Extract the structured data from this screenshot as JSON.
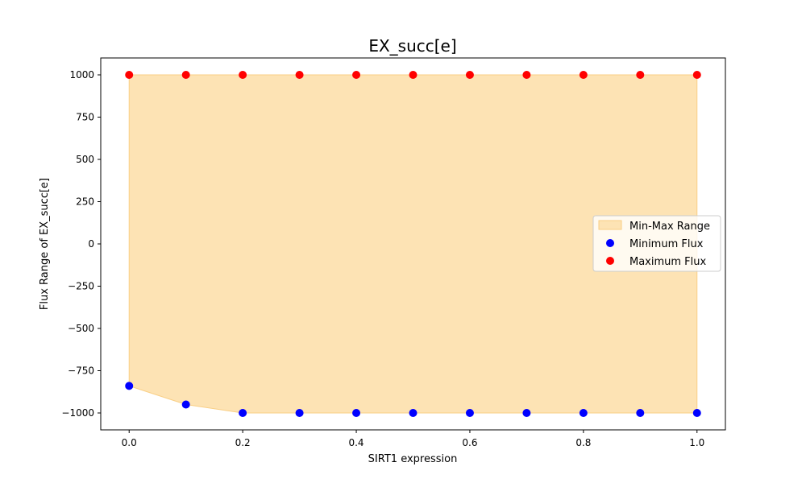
{
  "chart_data": {
    "type": "scatter",
    "title": "EX_succ[e]",
    "xlabel": "SIRT1 expression",
    "ylabel": "Flux Range of EX_succ[e]",
    "xlim": [
      -0.05,
      1.05
    ],
    "ylim": [
      -1100,
      1100
    ],
    "x_ticks": [
      "0.0",
      "0.2",
      "0.4",
      "0.6",
      "0.8",
      "1.0"
    ],
    "y_ticks": [
      "1000",
      "750",
      "500",
      "250",
      "0",
      "−250",
      "−500",
      "−750",
      "−1000"
    ],
    "x_tick_values": [
      0.0,
      0.2,
      0.4,
      0.6,
      0.8,
      1.0
    ],
    "y_tick_values": [
      1000,
      750,
      500,
      250,
      0,
      -250,
      -500,
      -750,
      -1000
    ],
    "grid": false,
    "legend_position": "center-right",
    "x": [
      0.0,
      0.1,
      0.2,
      0.3,
      0.4,
      0.5,
      0.6,
      0.7,
      0.8,
      0.9,
      1.0
    ],
    "range_fill": {
      "name": "Min-Max Range",
      "color": "#fde3b4",
      "edge_color": "#f9cf85"
    },
    "series": [
      {
        "name": "Minimum Flux",
        "color": "#0000ff",
        "values": [
          -840,
          -950,
          -1000,
          -1000,
          -1000,
          -1000,
          -1000,
          -1000,
          -1000,
          -1000,
          -1000
        ]
      },
      {
        "name": "Maximum Flux",
        "color": "#ff0000",
        "values": [
          1000,
          1000,
          1000,
          1000,
          1000,
          1000,
          1000,
          1000,
          1000,
          1000,
          1000
        ]
      }
    ]
  }
}
